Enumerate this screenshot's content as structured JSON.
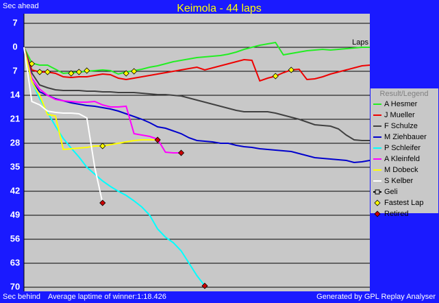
{
  "chart_data": {
    "type": "line",
    "title": "Keimola - 44 laps",
    "y_label_top": "Sec ahead",
    "y_label_bottom": "Sec behind",
    "x_label": "Laps",
    "footer_left": "Average laptime of winner:1:18.426",
    "footer_right": "Generated by GPL Replay Analyser",
    "legend_title": "Result/Legend",
    "legend": "right",
    "grid": true,
    "xlim": [
      0,
      44
    ],
    "ylim": [
      71.2,
      -9.8
    ],
    "yticks": [
      {
        "value": -7,
        "label": "7"
      },
      0,
      7,
      14,
      21,
      28,
      35,
      42,
      49,
      56,
      63,
      70
    ],
    "x": [
      0,
      1,
      2,
      3,
      4,
      5,
      6,
      7,
      8,
      9,
      10,
      11,
      12,
      13,
      14,
      15,
      16,
      17,
      18,
      19,
      20,
      21,
      22,
      23,
      24,
      25,
      26,
      27,
      28,
      29,
      30,
      31,
      32,
      33,
      34,
      35,
      36,
      37,
      38,
      39,
      40,
      41,
      42,
      43,
      44
    ],
    "series": [
      {
        "name": "A Hesmer",
        "color": "#22ee22",
        "values": [
          0,
          4.6,
          5.2,
          5.2,
          6.4,
          7.6,
          7.4,
          7.2,
          7.0,
          6.8,
          6.6,
          6.8,
          7.8,
          7.2,
          6.8,
          6.4,
          5.8,
          5.4,
          4.8,
          4.2,
          3.8,
          3.4,
          3.0,
          2.8,
          2.6,
          2.4,
          2.0,
          1.4,
          0.6,
          0.0,
          -0.6,
          -1.0,
          -1.4,
          2.2,
          1.8,
          1.4,
          1.0,
          0.8,
          0.6,
          0.8,
          0.6,
          0.4,
          0.2,
          0.0,
          0.0
        ]
      },
      {
        "name": "J Mueller",
        "color": "#ee0000",
        "values": [
          0,
          6.6,
          7.2,
          7.2,
          7.6,
          8.6,
          8.8,
          8.6,
          8.6,
          8.2,
          7.8,
          8.0,
          9.0,
          9.4,
          9.0,
          8.6,
          8.2,
          7.8,
          7.4,
          7.0,
          6.6,
          6.2,
          5.8,
          6.6,
          6.0,
          5.4,
          4.8,
          4.2,
          3.6,
          3.8,
          9.8,
          9.0,
          8.4,
          7.4,
          6.6,
          6.4,
          9.4,
          9.2,
          8.6,
          7.8,
          7.2,
          6.6,
          6.0,
          5.4,
          5.2
        ]
      },
      {
        "name": "F Schulze",
        "color": "#404040",
        "values": [
          0,
          7.5,
          11,
          11.8,
          12.4,
          12.6,
          12.6,
          12.6,
          12.8,
          12.8,
          13.0,
          13.0,
          13.2,
          13.2,
          13.2,
          13.4,
          13.6,
          13.8,
          13.8,
          14.0,
          14.2,
          14.8,
          15.4,
          16.0,
          16.6,
          17.2,
          17.8,
          18.4,
          18.8,
          18.8,
          18.8,
          18.8,
          19.2,
          19.8,
          20.4,
          21.0,
          21.8,
          22.6,
          22.8,
          23.0,
          23.8,
          25.6,
          27.0,
          27.2,
          27.2
        ]
      },
      {
        "name": "M Ziehbauer",
        "color": "#0000cc",
        "values": [
          0,
          10,
          13,
          14,
          15,
          15.6,
          16.2,
          16.6,
          17,
          17.2,
          17.6,
          18,
          18.6,
          19.4,
          20.2,
          21,
          22,
          23.2,
          23.6,
          24.4,
          25.2,
          26.4,
          27.2,
          27.4,
          27.6,
          28,
          28,
          28.6,
          29,
          29.2,
          29.6,
          29.8,
          30,
          30.2,
          30.4,
          31,
          31.6,
          32.2,
          32.4,
          32.6,
          32.8,
          33,
          33.6,
          33.4,
          33
        ]
      },
      {
        "name": "P Schleifer",
        "color": "#00ffff",
        "values": [
          0,
          10,
          15,
          19,
          23,
          26.6,
          29.4,
          32,
          35,
          37,
          39,
          40.6,
          42,
          43.2,
          44.8,
          46.6,
          49,
          53,
          55.4,
          57,
          59.4,
          63,
          66.6,
          69.6,
          null,
          null,
          null,
          null,
          null,
          null,
          null,
          null,
          null,
          null,
          null,
          null,
          null,
          null,
          null,
          null,
          null,
          null,
          null,
          null,
          null
        ]
      },
      {
        "name": "A Kleinfeld",
        "color": "#ff00ff",
        "values": [
          0,
          9,
          12.2,
          14,
          15.2,
          15.6,
          15.8,
          16,
          16,
          15.8,
          16.8,
          17.4,
          17.4,
          17.2,
          25.2,
          25.6,
          26,
          26.8,
          30.6,
          30.8,
          30.8,
          null,
          null,
          null,
          null,
          null,
          null,
          null,
          null,
          null,
          null,
          null,
          null,
          null,
          null,
          null,
          null,
          null,
          null,
          null,
          null,
          null,
          null,
          null,
          null
        ]
      },
      {
        "name": "M Dobeck",
        "color": "#ffff00",
        "values": [
          0,
          10,
          14,
          19.6,
          20,
          29.8,
          29.6,
          29.4,
          29.2,
          28.8,
          28.8,
          28.4,
          28,
          27.6,
          27.2,
          27,
          27,
          27,
          null,
          null,
          null,
          null,
          null,
          null,
          null,
          null,
          null,
          null,
          null,
          null,
          null,
          null,
          null,
          null,
          null,
          null,
          null,
          null,
          null,
          null,
          null,
          null,
          null,
          null,
          null
        ]
      },
      {
        "name": "S Kelber",
        "color": "#ffffff",
        "values": [
          0,
          15.8,
          16.8,
          18.6,
          19,
          19.2,
          19.2,
          19.4,
          20.6,
          35,
          45.4,
          null,
          null,
          null,
          null,
          null,
          null,
          null,
          null,
          null,
          null,
          null,
          null,
          null,
          null,
          null,
          null,
          null,
          null,
          null,
          null,
          null,
          null,
          null,
          null,
          null,
          null,
          null,
          null,
          null,
          null,
          null,
          null,
          null,
          null
        ]
      },
      {
        "name": "Geli",
        "color": "#000000",
        "marker": "square",
        "values": [
          null,
          null,
          null,
          null,
          null,
          null,
          null,
          null,
          null,
          null,
          null,
          null,
          null,
          null,
          null,
          null,
          null,
          null,
          null,
          null,
          null,
          null,
          null,
          null,
          null,
          null,
          null,
          null,
          null,
          null,
          null,
          null,
          null,
          null,
          null,
          null,
          null,
          null,
          null,
          null,
          null,
          null,
          null,
          null,
          null
        ]
      }
    ],
    "markers": [
      {
        "name": "Fastest Lap",
        "color": "#ffff00",
        "x": [
          1,
          2,
          3,
          6,
          7,
          8,
          13,
          14,
          10,
          32,
          34
        ],
        "values": [
          4.8,
          7.2,
          7.2,
          7.6,
          7.2,
          6.8,
          7.6,
          7.0,
          28.8,
          8.4,
          6.6
        ]
      },
      {
        "name": "Retired",
        "color": "#cc0000",
        "x": [
          10,
          17,
          20,
          23
        ],
        "values": [
          45.4,
          27,
          30.8,
          69.6
        ]
      }
    ]
  }
}
